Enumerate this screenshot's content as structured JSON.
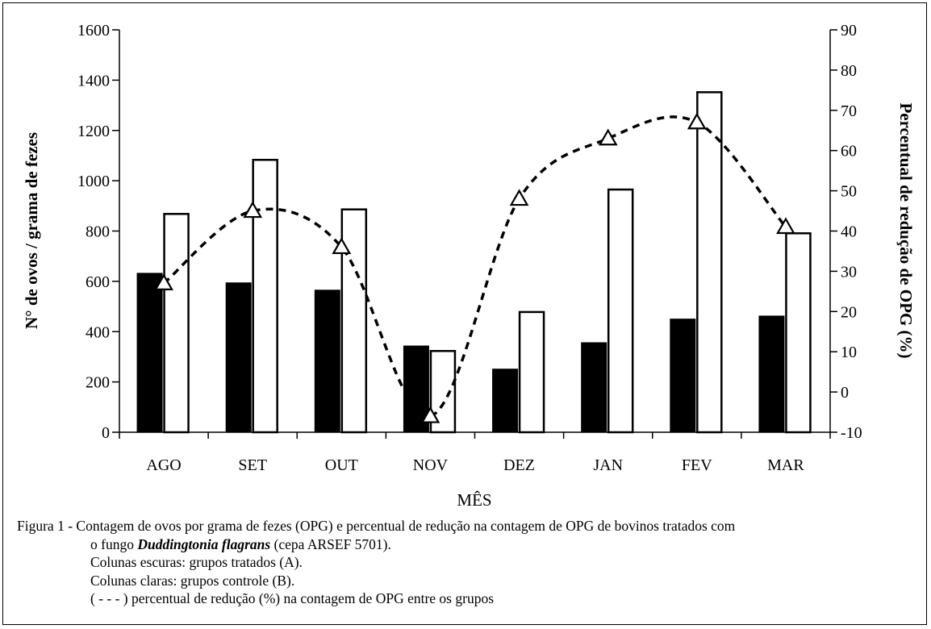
{
  "chart_data": {
    "type": "bar",
    "categories": [
      "AGO",
      "SET",
      "OUT",
      "NOV",
      "DEZ",
      "JAN",
      "FEV",
      "MAR"
    ],
    "series": [
      {
        "values": [
          632,
          594,
          565,
          343,
          251,
          356,
          450,
          462
        ],
        "color": "#000000",
        "style": "filled"
      },
      {
        "values": [
          868,
          1083,
          886,
          323,
          478,
          965,
          1352,
          791
        ],
        "color": "#ffffff",
        "style": "outlined"
      }
    ],
    "line_series": {
      "axis": "right",
      "style": "dashed",
      "marker": "triangle",
      "values": [
        27,
        45,
        36,
        -6,
        48,
        63,
        67,
        41
      ]
    },
    "ylabel": "N° de ovos / grama de fezes",
    "ylabel_right": "Percentual de redução de OPG (%)",
    "xlabel": "MÊS",
    "ylim": [
      0,
      1600
    ],
    "ylim_right": [
      -10,
      90
    ],
    "yticks": [
      "0",
      "200",
      "400",
      "600",
      "800",
      "1000",
      "1200",
      "1400",
      "1600"
    ],
    "yticks_right": [
      "-10",
      "0",
      "10",
      "20",
      "30",
      "40",
      "50",
      "60",
      "70",
      "80",
      "90"
    ],
    "grid": false,
    "legend": "none"
  },
  "caption": {
    "line1": "Figura 1 - Contagem de  ovos por grama de fezes (OPG) e percentual de redução na contagem de OPG de bovinos tratados com",
    "line2_prefix": "o fungo ",
    "line2_italic": "Duddingtonia flagrans",
    "line2_suffix": " (cepa ARSEF 5701).",
    "line3": "Colunas escuras: grupos tratados (A).",
    "line4": "Colunas claras: grupos controle (B).",
    "line5": "( - - - ) percentual de redução (%) na contagem de OPG entre os grupos"
  }
}
